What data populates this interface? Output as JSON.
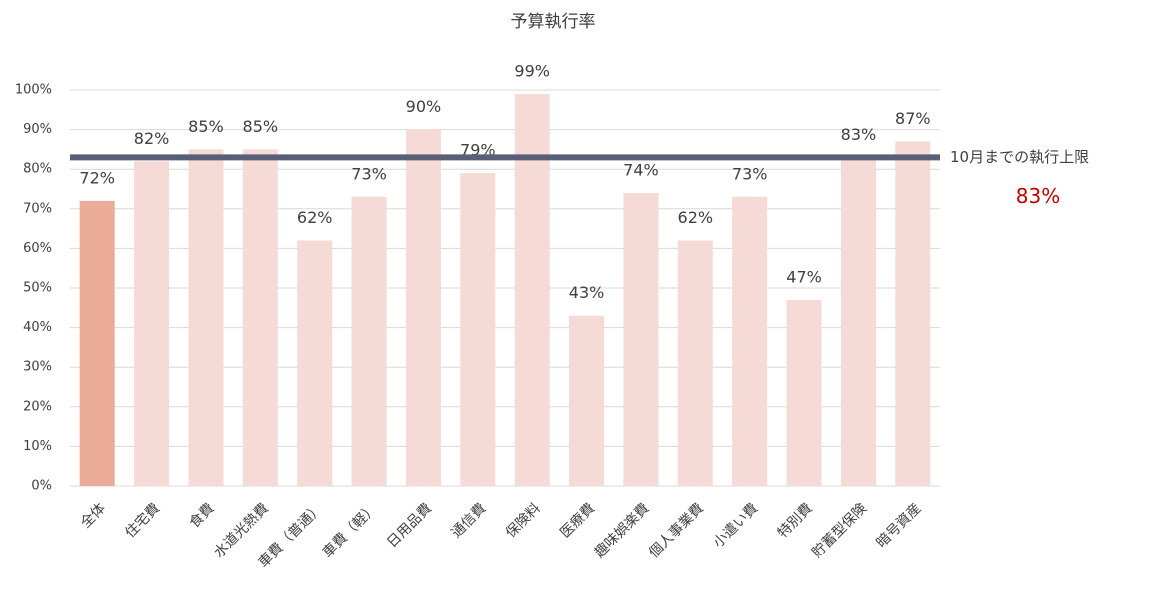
{
  "chart_data": {
    "type": "bar",
    "title": "予算執行率",
    "categories": [
      "全体",
      "住宅費",
      "食費",
      "水道光熱費",
      "車費（普通）",
      "車費（軽）",
      "日用品費",
      "通信費",
      "保険料",
      "医療費",
      "趣味娯楽費",
      "個人事業費",
      "小遣い費",
      "特別費",
      "貯蓄型保険",
      "暗号資産"
    ],
    "values": [
      72,
      82,
      85,
      85,
      62,
      73,
      90,
      79,
      99,
      43,
      74,
      62,
      73,
      47,
      83,
      87
    ],
    "value_labels": [
      "72%",
      "82%",
      "85%",
      "85%",
      "62%",
      "73%",
      "90%",
      "79%",
      "99%",
      "43%",
      "74%",
      "62%",
      "73%",
      "47%",
      "83%",
      "87%"
    ],
    "colors": [
      "#eaab99",
      "#f5dad6",
      "#f5dad6",
      "#f5dad6",
      "#f5dad6",
      "#f5dad6",
      "#f5dad6",
      "#f5dad6",
      "#f5dad6",
      "#f5dad6",
      "#f5dad6",
      "#f5dad6",
      "#f5dad6",
      "#f5dad6",
      "#f5dad6",
      "#f5dad6"
    ],
    "ylim": [
      0,
      100
    ],
    "yticks": [
      {
        "value": 0,
        "label": "0%"
      },
      {
        "value": 10,
        "label": "10%"
      },
      {
        "value": 20,
        "label": "20%"
      },
      {
        "value": 30,
        "label": "30%"
      },
      {
        "value": 40,
        "label": "40%"
      },
      {
        "value": 50,
        "label": "50%"
      },
      {
        "value": 60,
        "label": "60%"
      },
      {
        "value": 70,
        "label": "70%"
      },
      {
        "value": 80,
        "label": "80%"
      },
      {
        "value": 90,
        "label": "90%"
      },
      {
        "value": 100,
        "label": "100%"
      }
    ],
    "grid": true,
    "reference_line": {
      "value": 83,
      "label": "10月までの執行上限",
      "value_label": "83%",
      "color": "#5a5f78",
      "value_label_color": "#c00000"
    }
  }
}
